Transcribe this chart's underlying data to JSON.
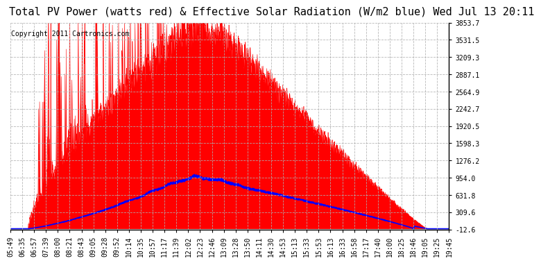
{
  "title": "Total PV Power (watts red) & Effective Solar Radiation (W/m2 blue) Wed Jul 13 20:11",
  "copyright": "Copyright 2011 Cartronics.com",
  "yticks": [
    -12.6,
    309.6,
    631.8,
    954.0,
    1276.2,
    1598.3,
    1920.5,
    2242.7,
    2564.9,
    2887.1,
    3209.3,
    3531.5,
    3853.7
  ],
  "xtick_labels": [
    "05:49",
    "06:35",
    "06:57",
    "07:39",
    "08:00",
    "08:21",
    "08:43",
    "09:05",
    "09:28",
    "09:52",
    "10:14",
    "10:35",
    "10:57",
    "11:17",
    "11:39",
    "12:02",
    "12:23",
    "12:46",
    "13:09",
    "13:28",
    "13:50",
    "14:11",
    "14:30",
    "14:53",
    "15:13",
    "15:33",
    "15:53",
    "16:13",
    "16:33",
    "16:58",
    "17:17",
    "17:40",
    "18:00",
    "18:25",
    "18:46",
    "19:05",
    "19:25",
    "19:45"
  ],
  "bg_color": "#ffffff",
  "title_fontsize": 11,
  "copyright_fontsize": 7,
  "tick_fontsize": 7,
  "red_color": "#ff0000",
  "blue_color": "#0000ff",
  "grid_color": "#b0b0b0",
  "ymin": -12.6,
  "ymax": 3853.7
}
